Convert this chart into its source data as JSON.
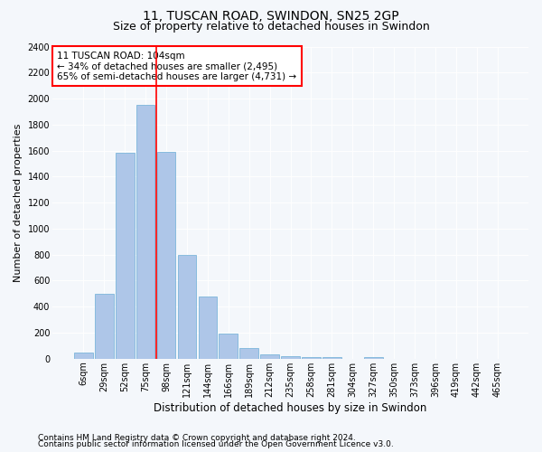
{
  "title": "11, TUSCAN ROAD, SWINDON, SN25 2GP",
  "subtitle": "Size of property relative to detached houses in Swindon",
  "xlabel": "Distribution of detached houses by size in Swindon",
  "ylabel": "Number of detached properties",
  "bar_labels": [
    "6sqm",
    "29sqm",
    "52sqm",
    "75sqm",
    "98sqm",
    "121sqm",
    "144sqm",
    "166sqm",
    "189sqm",
    "212sqm",
    "235sqm",
    "258sqm",
    "281sqm",
    "304sqm",
    "327sqm",
    "350sqm",
    "373sqm",
    "396sqm",
    "419sqm",
    "442sqm",
    "465sqm"
  ],
  "bar_values": [
    50,
    500,
    1580,
    1950,
    1590,
    800,
    480,
    195,
    85,
    32,
    22,
    15,
    10,
    0,
    15,
    0,
    0,
    0,
    0,
    0,
    0
  ],
  "bar_color": "#aec6e8",
  "bar_edge_color": "#6baed6",
  "vline_x_index": 3,
  "vline_color": "red",
  "annotation_text": "11 TUSCAN ROAD: 104sqm\n← 34% of detached houses are smaller (2,495)\n65% of semi-detached houses are larger (4,731) →",
  "annotation_box_color": "white",
  "annotation_box_edge": "red",
  "ylim": [
    0,
    2400
  ],
  "yticks": [
    0,
    200,
    400,
    600,
    800,
    1000,
    1200,
    1400,
    1600,
    1800,
    2000,
    2200,
    2400
  ],
  "footer1": "Contains HM Land Registry data © Crown copyright and database right 2024.",
  "footer2": "Contains public sector information licensed under the Open Government Licence v3.0.",
  "bg_color": "#f4f7fb",
  "plot_bg_color": "#f4f7fb",
  "title_fontsize": 10,
  "subtitle_fontsize": 9,
  "tick_fontsize": 7,
  "ylabel_fontsize": 8,
  "xlabel_fontsize": 8.5,
  "annotation_fontsize": 7.5,
  "footer_fontsize": 6.5
}
